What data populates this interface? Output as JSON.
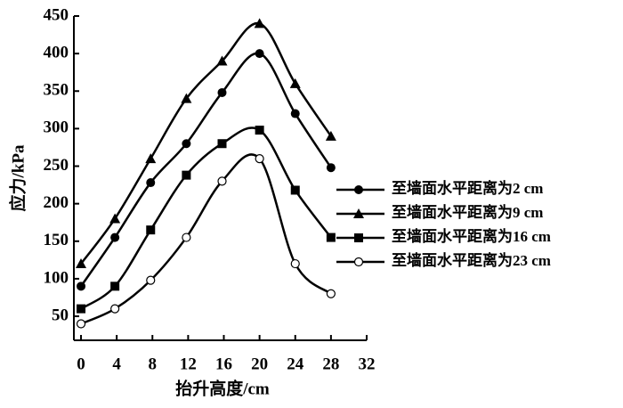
{
  "chart_data": {
    "type": "line",
    "x_label": "抬升高度/cm",
    "y_label": "应力/kPa",
    "x": [
      0,
      3.8,
      7.8,
      11.8,
      15.8,
      20,
      24,
      28
    ],
    "series": [
      {
        "name": "至墙面水平距离为2 cm",
        "color": "#000000",
        "marker": "circle",
        "values": [
          90,
          155,
          228,
          280,
          348,
          400,
          320,
          248
        ]
      },
      {
        "name": "至墙面水平距离为9 cm",
        "color": "#000000",
        "marker": "triangle",
        "values": [
          120,
          180,
          260,
          340,
          390,
          440,
          360,
          290
        ]
      },
      {
        "name": "至墙面水平距离为16 cm",
        "color": "#000000",
        "marker": "square",
        "values": [
          60,
          90,
          165,
          238,
          280,
          298,
          218,
          155
        ]
      },
      {
        "name": "至墙面水平距离为23 cm",
        "color": "#000000",
        "marker": "open-circle",
        "values": [
          40,
          60,
          98,
          155,
          230,
          260,
          120,
          80
        ]
      }
    ],
    "xlim": [
      -0.8,
      32
    ],
    "xticks": [
      0,
      4,
      8,
      12,
      16,
      20,
      24,
      28,
      32
    ],
    "ylim": [
      18,
      450
    ],
    "yticks": [
      50,
      100,
      150,
      200,
      250,
      300,
      350,
      400,
      450
    ],
    "grid": false,
    "legend": "right"
  }
}
